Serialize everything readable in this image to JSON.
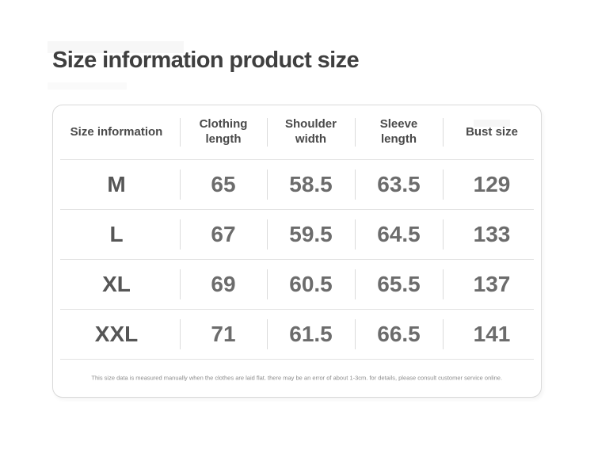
{
  "section": {
    "title": "Size information product size"
  },
  "table": {
    "columns": [
      "Size information",
      "Clothing length",
      "Shoulder width",
      "Sleeve length",
      "Bust size"
    ],
    "rows": [
      {
        "size": "M",
        "measurements": [
          "65",
          "58.5",
          "63.5",
          "129"
        ]
      },
      {
        "size": "L",
        "measurements": [
          "67",
          "59.5",
          "64.5",
          "133"
        ]
      },
      {
        "size": "XL",
        "measurements": [
          "69",
          "60.5",
          "65.5",
          "137"
        ]
      },
      {
        "size": "XXL",
        "measurements": [
          "71",
          "61.5",
          "66.5",
          "141"
        ]
      }
    ],
    "note": "This size data is measured manually when the clothes are laid flat. there may be an error of about 1-3cm. for details, please consult customer service online."
  },
  "colors": {
    "card_border": "#d9d9d9",
    "row_divider": "#e3e3e3",
    "column_divider": "#dbdbdb",
    "title_text": "#3f3f3f",
    "header_text": "#4a4a4a",
    "size_text": "#565656",
    "value_text": "#6c6c6c",
    "note_text": "#8c8c8c"
  }
}
